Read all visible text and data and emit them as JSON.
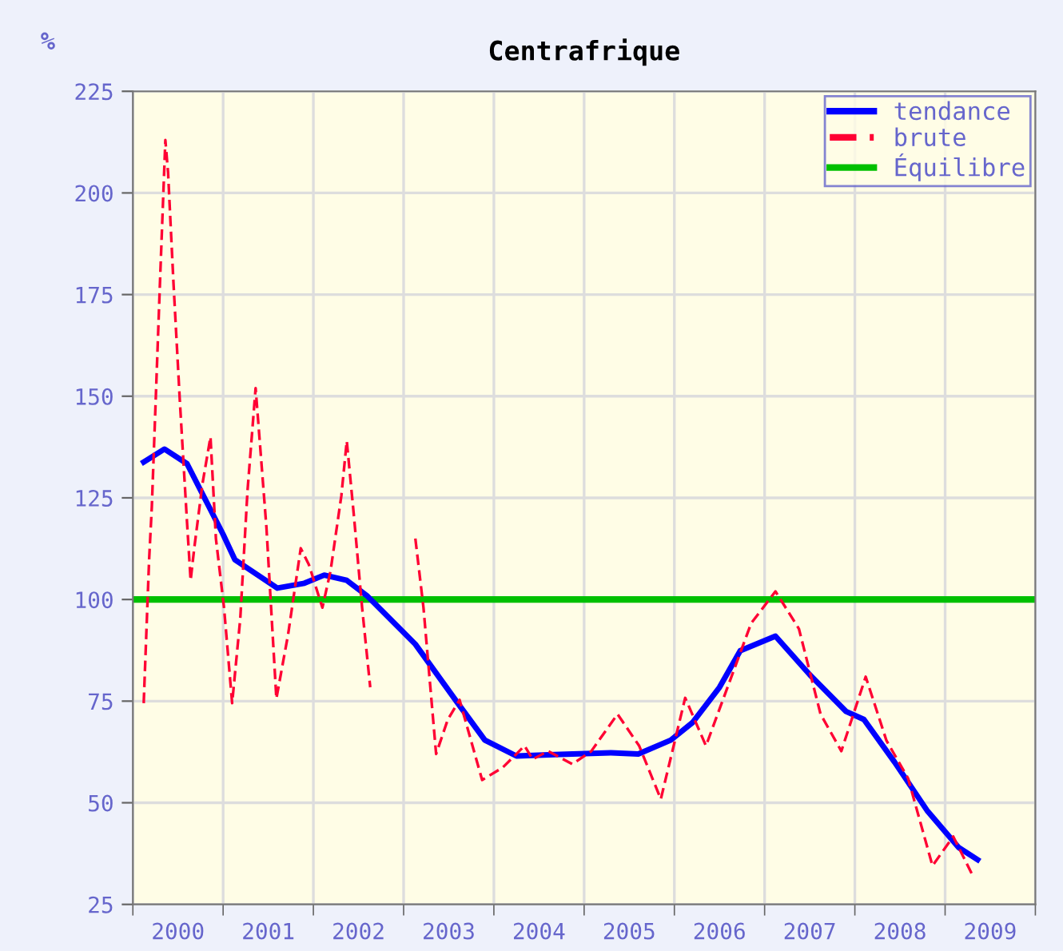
{
  "chart_data": {
    "type": "line",
    "title": "Centrafrique",
    "ylabel": "%",
    "xlim": [
      2000,
      2010
    ],
    "ylim": [
      25,
      225
    ],
    "xticks": [
      {
        "value": 2000,
        "label": null
      },
      {
        "value": 2001,
        "label": null
      },
      {
        "value": 2002,
        "label": null
      },
      {
        "value": 2003,
        "label": null
      },
      {
        "value": 2004,
        "label": null
      },
      {
        "value": 2005,
        "label": null
      },
      {
        "value": 2006,
        "label": null
      },
      {
        "value": 2007,
        "label": null
      },
      {
        "value": 2008,
        "label": null
      },
      {
        "value": 2009,
        "label": null
      },
      {
        "value": 2010,
        "label": null
      },
      {
        "value": 2000.5,
        "label": "2000"
      },
      {
        "value": 2001.5,
        "label": "2001"
      },
      {
        "value": 2002.5,
        "label": "2002"
      },
      {
        "value": 2003.5,
        "label": "2003"
      },
      {
        "value": 2004.5,
        "label": "2004"
      },
      {
        "value": 2005.5,
        "label": "2005"
      },
      {
        "value": 2006.5,
        "label": "2006"
      },
      {
        "value": 2007.5,
        "label": "2007"
      },
      {
        "value": 2008.5,
        "label": "2008"
      },
      {
        "value": 2009.5,
        "label": "2009"
      }
    ],
    "yticks": [
      25,
      50,
      75,
      100,
      125,
      150,
      175,
      200,
      225
    ],
    "grid": true,
    "legend": "top right",
    "series": [
      {
        "name": "tendance",
        "color": "#0000ff",
        "line_style": "solid",
        "x": [
          2000.12,
          2000.35,
          2000.6,
          2001.0,
          2001.13,
          2001.6,
          2001.9,
          2002.12,
          2002.37,
          2002.6,
          2003.13,
          2003.6,
          2003.9,
          2004.25,
          2004.73,
          2005.3,
          2005.6,
          2005.96,
          2006.2,
          2006.5,
          2006.73,
          2007.12,
          2007.5,
          2007.9,
          2008.1,
          2008.44,
          2008.8,
          2009.15,
          2009.36
        ],
        "values": [
          133.8,
          137,
          133.4,
          116,
          109.8,
          102.8,
          104,
          106,
          104.7,
          100.8,
          89,
          74.5,
          65.4,
          61.5,
          61.9,
          62.3,
          62,
          65.4,
          69.7,
          78.4,
          87.4,
          91,
          81.5,
          72.5,
          70.5,
          60,
          48.1,
          39,
          36
        ]
      },
      {
        "name": "brute",
        "color": "#ff0033",
        "line_style": "dashed",
        "x": [
          2000.12,
          2000.18,
          2000.21,
          2000.3,
          2000.36,
          2000.39,
          2000.45,
          2000.52,
          2000.6,
          2000.64,
          2000.68,
          2000.77,
          2000.86,
          2000.92,
          2001.01,
          2001.1,
          2001.19,
          2001.27,
          2001.36,
          2001.48,
          2001.59,
          2001.72,
          2001.86,
          2001.95,
          2002.1,
          2002.19,
          2002.31,
          2002.37,
          2002.45,
          2002.54,
          2002.63,
          2002.9,
          2003.13,
          2003.22,
          2003.36,
          2003.49,
          2003.62,
          2003.87,
          2004.1,
          2004.34,
          2004.43,
          2004.6,
          2004.87,
          2005.08,
          2005.37,
          2005.61,
          2005.85,
          2006.12,
          2006.35,
          2006.85,
          2007.12,
          2007.38,
          2007.62,
          2007.85,
          2008.12,
          2008.35,
          2008.59,
          2008.86,
          2009.09,
          2009.31
        ],
        "values": [
          74.5,
          109.8,
          122.8,
          177.8,
          213,
          205,
          177.8,
          149,
          119,
          104.7,
          112.6,
          128.3,
          140,
          115,
          98,
          74.5,
          95.3,
          126.7,
          152,
          117.7,
          75.6,
          91.4,
          112.6,
          108.6,
          98,
          107,
          125.5,
          139,
          120.4,
          98,
          78.4,
          null,
          115,
          98,
          62,
          70.5,
          75.3,
          55.6,
          58.7,
          64,
          60.7,
          62.7,
          59.5,
          62.7,
          71.8,
          64,
          50.9,
          75.8,
          64,
          94.1,
          102,
          92.8,
          71.8,
          62.7,
          81,
          65.3,
          56,
          34.5,
          41.7,
          31.9
        ]
      }
    ],
    "ref_lines": [
      {
        "axis": "y",
        "value": 100,
        "label": "Équilibre",
        "color": "#00c000",
        "line_style": "solid"
      }
    ]
  }
}
